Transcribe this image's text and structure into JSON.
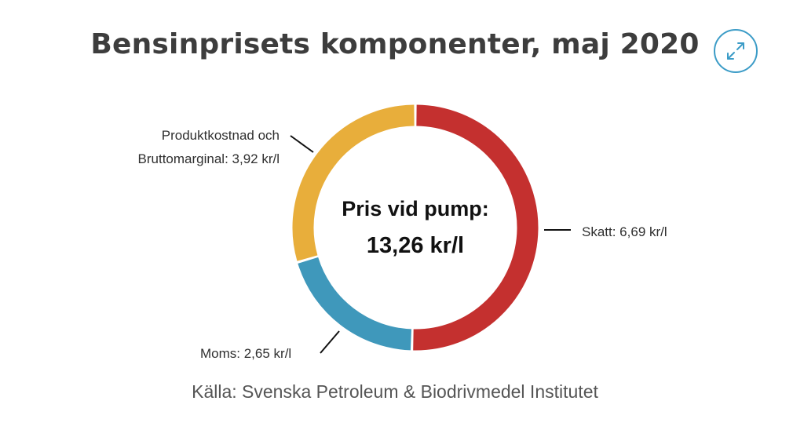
{
  "chart_data": {
    "type": "pie",
    "title": "Bensinprisets komponenter, maj 2020",
    "center_label_line1": "Pris vid pump:",
    "center_label_line2": "13,26 kr/l",
    "total": 13.26,
    "slices": [
      {
        "label": "Skatt: 6,69 kr/l",
        "value": 6.69,
        "color": "#c4302f"
      },
      {
        "label": "Moms: 2,65 kr/l",
        "value": 2.65,
        "color": "#3f98bb"
      },
      {
        "label_line1": "Produktkostnad och",
        "label_line2": "Bruttomarginal: 3,92 kr/l",
        "value": 3.92,
        "color": "#e8ae3b"
      }
    ],
    "source": "Källa: Svenska Petroleum & Biodrivmedel Institutet"
  },
  "icons": {
    "expand": "expand-arrows-icon",
    "accent": "#3c9cc7"
  }
}
